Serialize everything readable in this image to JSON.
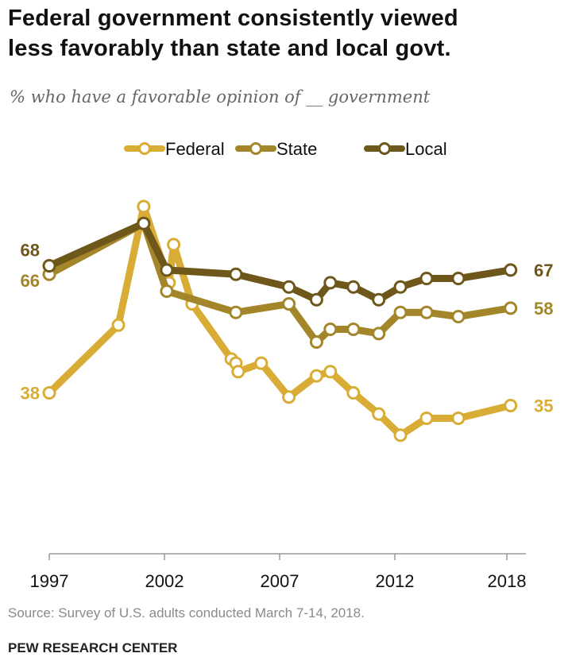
{
  "chart_data": {
    "type": "line",
    "title": "Federal government consistently viewed less favorably than state and local govt.",
    "subtitle": "% who have a favorable opinion of __ government",
    "xlabel": "",
    "ylabel": "",
    "x_ticks": [
      1997,
      2002,
      2007,
      2012,
      2018
    ],
    "x_tick_labels": [
      "1997",
      "2002",
      "2007",
      "2012",
      "2018"
    ],
    "ylim": [
      0,
      85
    ],
    "grid": false,
    "legend_position": "top",
    "series": [
      {
        "name": "Federal",
        "color": "#d9ac35",
        "x": [
          1997.0,
          2000.0,
          2001.1,
          2002.2,
          2002.4,
          2003.2,
          2004.9,
          2005.1,
          2005.2,
          2006.2,
          2007.4,
          2008.6,
          2009.2,
          2010.2,
          2011.3,
          2012.3,
          2013.7,
          2015.4,
          2018.2
        ],
        "values": [
          38,
          54,
          82,
          64,
          73,
          59,
          46,
          45,
          43,
          45,
          37,
          42,
          43,
          38,
          33,
          28,
          32,
          32,
          35
        ],
        "start_label": "38",
        "end_label": "35"
      },
      {
        "name": "State",
        "color": "#a4862a",
        "x": [
          1997.0,
          2001.1,
          2002.1,
          2005.1,
          2007.4,
          2008.6,
          2009.2,
          2010.2,
          2011.3,
          2012.3,
          2013.7,
          2015.4,
          2018.2
        ],
        "values": [
          66,
          78,
          62,
          57,
          59,
          50,
          53,
          53,
          52,
          57,
          57,
          56,
          58
        ],
        "start_label": "66",
        "end_label": "58"
      },
      {
        "name": "Local",
        "color": "#6e571b",
        "x": [
          1997.0,
          2001.1,
          2002.1,
          2005.1,
          2007.4,
          2008.6,
          2009.2,
          2010.2,
          2011.3,
          2012.3,
          2013.7,
          2015.4,
          2018.2
        ],
        "values": [
          68,
          78,
          67,
          66,
          63,
          60,
          64,
          63,
          60,
          63,
          65,
          65,
          67
        ],
        "start_label": "68",
        "end_label": "67"
      }
    ]
  },
  "header": {
    "title_line1": "Federal government consistently viewed",
    "title_line2": "less favorably than state and local govt.",
    "subtitle": "% who have a favorable opinion of __ government"
  },
  "footer": {
    "source": "Source: Survey of U.S. adults conducted March 7-14, 2018.",
    "brand": "PEW RESEARCH CENTER"
  }
}
